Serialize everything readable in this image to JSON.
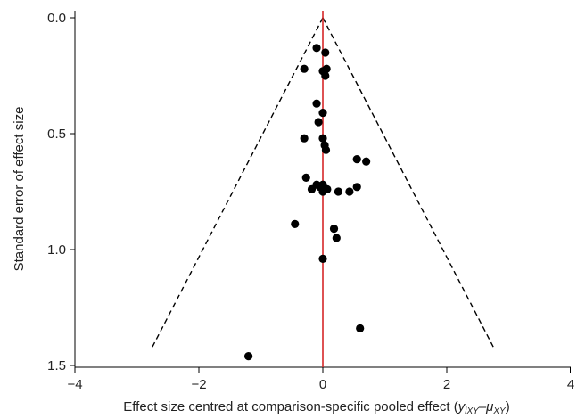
{
  "chart_data": {
    "type": "scatter",
    "xlabel_main": "Effect size centred at comparison-specific pooled effect (",
    "xlabel_y": "y",
    "xlabel_y_sub": "iXY",
    "xlabel_dash": "–",
    "xlabel_mu": "μ",
    "xlabel_mu_sub": "XY",
    "xlabel_close": ")",
    "ylabel": "Standard error of effect size",
    "xlim": [
      -4,
      4
    ],
    "ylim": [
      0,
      1.5
    ],
    "y_inverted": true,
    "x_ticks": [
      -4,
      -2,
      0,
      2,
      4
    ],
    "x_tick_labels": [
      "−4",
      "−2",
      "0",
      "2",
      "4"
    ],
    "y_ticks": [
      0.0,
      0.5,
      1.0,
      1.5
    ],
    "y_tick_labels": [
      "0.0",
      "0.5",
      "1.0",
      "1.5"
    ],
    "reference_line_x": 0,
    "reference_line_color": "#d62728",
    "funnel": {
      "apex": [
        0,
        0
      ],
      "left_end": [
        -2.75,
        1.42
      ],
      "right_end": [
        2.75,
        1.42
      ]
    },
    "points": [
      {
        "x": -0.1,
        "y": 0.13
      },
      {
        "x": 0.04,
        "y": 0.15
      },
      {
        "x": -0.3,
        "y": 0.22
      },
      {
        "x": 0.06,
        "y": 0.22
      },
      {
        "x": 0.0,
        "y": 0.23
      },
      {
        "x": 0.04,
        "y": 0.25
      },
      {
        "x": -0.1,
        "y": 0.37
      },
      {
        "x": 0.0,
        "y": 0.41
      },
      {
        "x": -0.07,
        "y": 0.45
      },
      {
        "x": -0.3,
        "y": 0.52
      },
      {
        "x": 0.0,
        "y": 0.52
      },
      {
        "x": 0.03,
        "y": 0.55
      },
      {
        "x": 0.05,
        "y": 0.57
      },
      {
        "x": 0.55,
        "y": 0.61
      },
      {
        "x": 0.7,
        "y": 0.62
      },
      {
        "x": -0.27,
        "y": 0.69
      },
      {
        "x": -0.1,
        "y": 0.72
      },
      {
        "x": 0.0,
        "y": 0.72
      },
      {
        "x": 0.55,
        "y": 0.73
      },
      {
        "x": -0.05,
        "y": 0.73
      },
      {
        "x": -0.18,
        "y": 0.74
      },
      {
        "x": 0.07,
        "y": 0.74
      },
      {
        "x": 0.0,
        "y": 0.75
      },
      {
        "x": 0.25,
        "y": 0.75
      },
      {
        "x": 0.43,
        "y": 0.75
      },
      {
        "x": -0.45,
        "y": 0.89
      },
      {
        "x": 0.18,
        "y": 0.91
      },
      {
        "x": 0.22,
        "y": 0.95
      },
      {
        "x": 0.0,
        "y": 1.04
      },
      {
        "x": 0.6,
        "y": 1.34
      },
      {
        "x": -1.2,
        "y": 1.46
      }
    ]
  }
}
